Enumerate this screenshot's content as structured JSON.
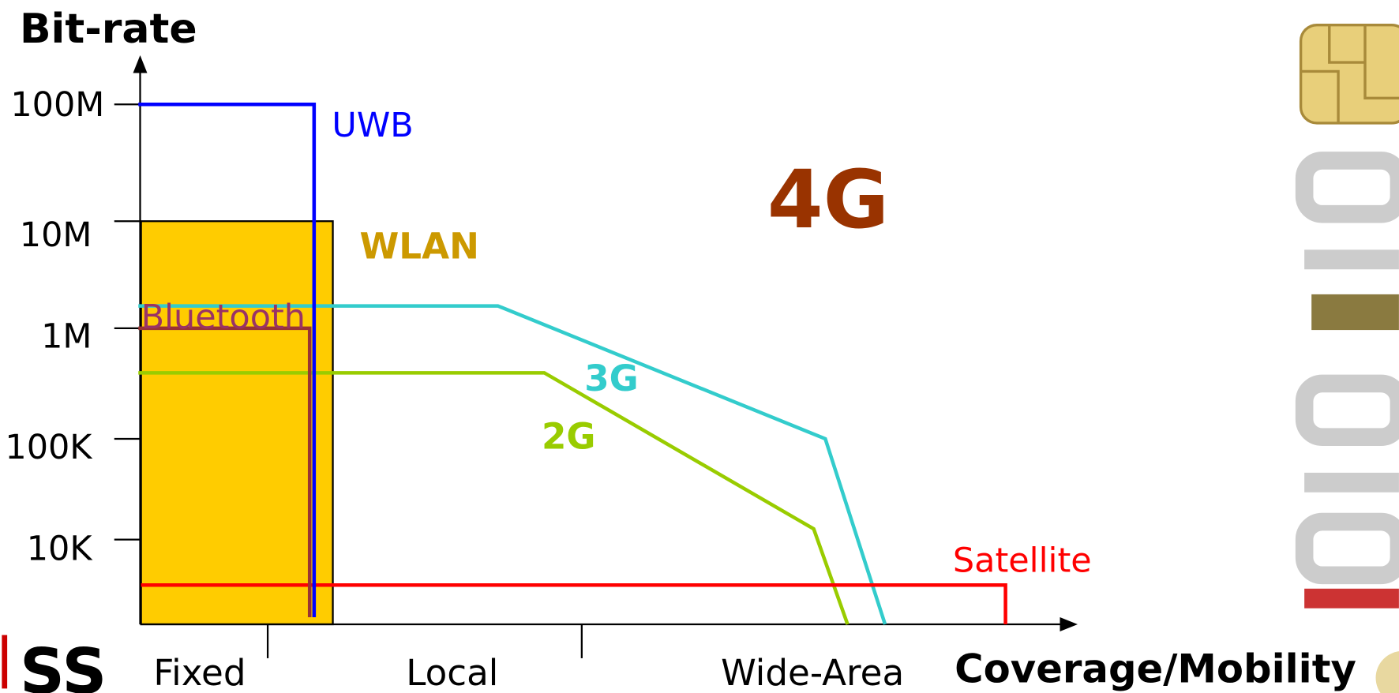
{
  "axes": {
    "y_title": "Bit-rate",
    "x_title": "Coverage/Mobility",
    "y_labels": [
      "100M",
      "10M",
      "1M",
      "100K",
      "10K"
    ],
    "x_labels": [
      "Fixed",
      "Local",
      "Wide-Area"
    ]
  },
  "technologies": {
    "uwb": "UWB",
    "wlan": "WLAN",
    "bluetooth": "Bluetooth",
    "3g": "3G",
    "2g": "2G",
    "satellite": "Satellite"
  },
  "headline": "4G",
  "logo": "SS"
}
